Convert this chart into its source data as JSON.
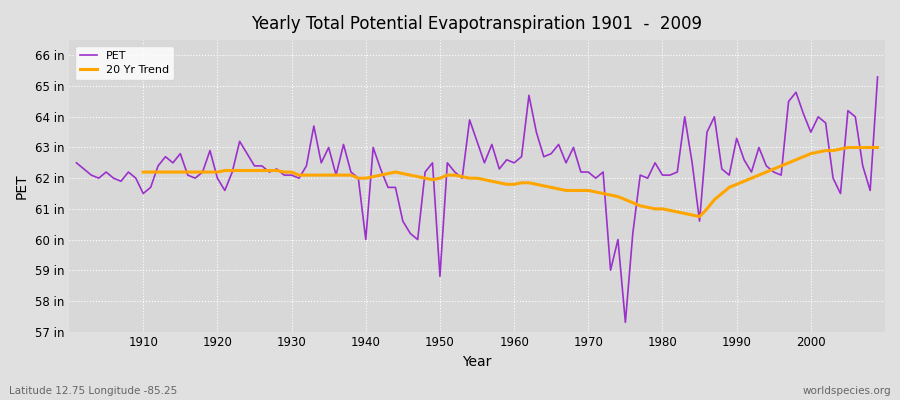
{
  "title": "Yearly Total Potential Evapotranspiration 1901  -  2009",
  "xlabel": "Year",
  "ylabel": "PET",
  "subtitle_left": "Latitude 12.75 Longitude -85.25",
  "subtitle_right": "worldspecies.org",
  "pet_color": "#9B30CC",
  "trend_color": "#FFA500",
  "bg_color": "#E0E0E0",
  "plot_bg_color": "#D8D8D8",
  "ylim": [
    57,
    66.5
  ],
  "yticks": [
    57,
    58,
    59,
    60,
    61,
    62,
    63,
    64,
    65,
    66
  ],
  "years": [
    1901,
    1902,
    1903,
    1904,
    1905,
    1906,
    1907,
    1908,
    1909,
    1910,
    1911,
    1912,
    1913,
    1914,
    1915,
    1916,
    1917,
    1918,
    1919,
    1920,
    1921,
    1922,
    1923,
    1924,
    1925,
    1926,
    1927,
    1928,
    1929,
    1930,
    1931,
    1932,
    1933,
    1934,
    1935,
    1936,
    1937,
    1938,
    1939,
    1940,
    1941,
    1942,
    1943,
    1944,
    1945,
    1946,
    1947,
    1948,
    1949,
    1950,
    1951,
    1952,
    1953,
    1954,
    1955,
    1956,
    1957,
    1958,
    1959,
    1960,
    1961,
    1962,
    1963,
    1964,
    1965,
    1966,
    1967,
    1968,
    1969,
    1970,
    1971,
    1972,
    1973,
    1974,
    1975,
    1976,
    1977,
    1978,
    1979,
    1980,
    1981,
    1982,
    1983,
    1984,
    1985,
    1986,
    1987,
    1988,
    1989,
    1990,
    1991,
    1992,
    1993,
    1994,
    1995,
    1996,
    1997,
    1998,
    1999,
    2000,
    2001,
    2002,
    2003,
    2004,
    2005,
    2006,
    2007,
    2008,
    2009
  ],
  "pet_values": [
    62.5,
    62.3,
    62.1,
    62.0,
    62.2,
    62.0,
    61.9,
    62.2,
    62.0,
    61.5,
    61.7,
    62.4,
    62.7,
    62.5,
    62.8,
    62.1,
    62.0,
    62.2,
    62.9,
    62.0,
    61.6,
    62.2,
    63.2,
    62.8,
    62.4,
    62.4,
    62.2,
    62.3,
    62.1,
    62.1,
    62.0,
    62.4,
    63.7,
    62.5,
    63.0,
    62.1,
    63.1,
    62.2,
    62.0,
    60.0,
    63.0,
    62.3,
    61.7,
    61.7,
    60.6,
    60.2,
    60.0,
    62.2,
    62.5,
    58.8,
    62.5,
    62.2,
    62.0,
    63.9,
    63.2,
    62.5,
    63.1,
    62.3,
    62.6,
    62.5,
    62.7,
    64.7,
    63.5,
    62.7,
    62.8,
    63.1,
    62.5,
    63.0,
    62.2,
    62.2,
    62.0,
    62.2,
    59.0,
    60.0,
    57.3,
    60.2,
    62.1,
    62.0,
    62.5,
    62.1,
    62.1,
    62.2,
    64.0,
    62.5,
    60.6,
    63.5,
    64.0,
    62.3,
    62.1,
    63.3,
    62.6,
    62.2,
    63.0,
    62.4,
    62.2,
    62.1,
    64.5,
    64.8,
    64.1,
    63.5,
    64.0,
    63.8,
    62.0,
    61.5,
    64.2,
    64.0,
    62.4,
    61.6,
    65.3
  ],
  "trend_years": [
    1910,
    1911,
    1912,
    1913,
    1914,
    1915,
    1916,
    1917,
    1918,
    1919,
    1920,
    1921,
    1922,
    1923,
    1924,
    1925,
    1926,
    1927,
    1928,
    1929,
    1930,
    1931,
    1932,
    1933,
    1934,
    1935,
    1936,
    1937,
    1938,
    1939,
    1940,
    1941,
    1942,
    1943,
    1944,
    1945,
    1946,
    1947,
    1948,
    1949,
    1950,
    1951,
    1952,
    1953,
    1954,
    1955,
    1956,
    1957,
    1958,
    1959,
    1960,
    1961,
    1962,
    1963,
    1964,
    1965,
    1966,
    1967,
    1968,
    1969,
    1970,
    1971,
    1972,
    1973,
    1974,
    1975,
    1976,
    1977,
    1978,
    1979,
    1980,
    1981,
    1982,
    1983,
    1984,
    1985,
    1986,
    1987,
    1988,
    1989,
    1990,
    1991,
    1992,
    1993,
    1994,
    1995,
    1996,
    1997,
    1998,
    1999,
    2000,
    2001,
    2002,
    2003,
    2004,
    2005,
    2006,
    2007,
    2008,
    2009
  ],
  "trend_values": [
    62.2,
    62.2,
    62.2,
    62.2,
    62.2,
    62.2,
    62.2,
    62.2,
    62.2,
    62.2,
    62.2,
    62.25,
    62.25,
    62.25,
    62.25,
    62.25,
    62.25,
    62.25,
    62.25,
    62.2,
    62.2,
    62.1,
    62.1,
    62.1,
    62.1,
    62.1,
    62.1,
    62.1,
    62.1,
    62.0,
    62.0,
    62.05,
    62.1,
    62.15,
    62.2,
    62.15,
    62.1,
    62.05,
    62.0,
    61.95,
    62.0,
    62.1,
    62.1,
    62.05,
    62.0,
    62.0,
    61.95,
    61.9,
    61.85,
    61.8,
    61.8,
    61.85,
    61.85,
    61.8,
    61.75,
    61.7,
    61.65,
    61.6,
    61.6,
    61.6,
    61.6,
    61.55,
    61.5,
    61.45,
    61.4,
    61.3,
    61.2,
    61.1,
    61.05,
    61.0,
    61.0,
    60.95,
    60.9,
    60.85,
    60.8,
    60.75,
    61.0,
    61.3,
    61.5,
    61.7,
    61.8,
    61.9,
    62.0,
    62.1,
    62.2,
    62.3,
    62.4,
    62.5,
    62.6,
    62.7,
    62.8,
    62.85,
    62.9,
    62.9,
    62.95,
    63.0,
    63.0,
    63.0,
    63.0,
    63.0
  ]
}
